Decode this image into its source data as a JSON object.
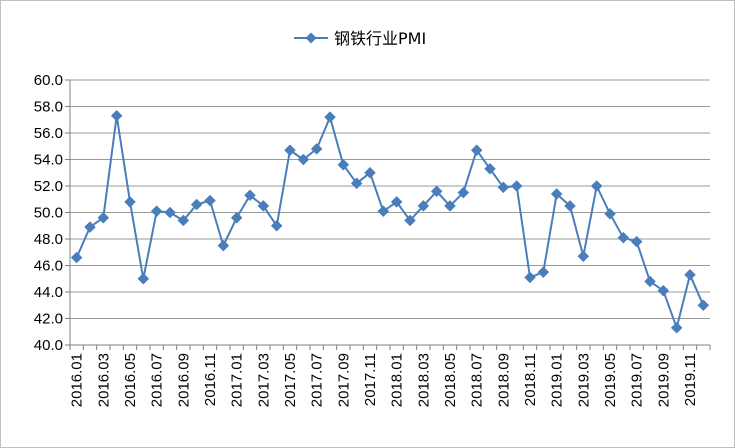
{
  "chart_data": {
    "type": "line",
    "x": [
      "2016.01",
      "2016.02",
      "2016.03",
      "2016.04",
      "2016.05",
      "2016.06",
      "2016.07",
      "2016.08",
      "2016.09",
      "2016.10",
      "2016.11",
      "2016.12",
      "2017.01",
      "2017.02",
      "2017.03",
      "2017.04",
      "2017.05",
      "2017.06",
      "2017.07",
      "2017.08",
      "2017.09",
      "2017.10",
      "2017.11",
      "2017.12",
      "2018.01",
      "2018.02",
      "2018.03",
      "2018.04",
      "2018.05",
      "2018.06",
      "2018.07",
      "2018.08",
      "2018.09",
      "2018.10",
      "2018.11",
      "2018.12",
      "2019.01",
      "2019.02",
      "2019.03",
      "2019.04",
      "2019.05",
      "2019.06",
      "2019.07",
      "2019.08",
      "2019.09",
      "2019.10",
      "2019.11",
      "2019.12"
    ],
    "x_tick_labels": [
      "2016.01",
      "2016.03",
      "2016.05",
      "2016.07",
      "2016.09",
      "2016.11",
      "2017.01",
      "2017.03",
      "2017.05",
      "2017.07",
      "2017.09",
      "2017.11",
      "2018.01",
      "2018.03",
      "2018.05",
      "2018.07",
      "2018.09",
      "2018.11",
      "2019.01",
      "2019.03",
      "2019.05",
      "2019.07",
      "2019.09",
      "2019.11"
    ],
    "series": [
      {
        "name": "钢铁行业PMI",
        "color": "#4a7ebb",
        "marker": "diamond",
        "values": [
          46.6,
          48.9,
          49.6,
          57.3,
          50.8,
          45.0,
          50.1,
          50.0,
          49.4,
          50.6,
          50.9,
          47.5,
          49.6,
          51.3,
          50.5,
          49.0,
          54.7,
          54.0,
          54.8,
          57.2,
          53.6,
          52.2,
          53.0,
          50.1,
          50.8,
          49.4,
          50.5,
          51.6,
          50.5,
          51.5,
          54.7,
          53.3,
          51.9,
          52.0,
          45.1,
          45.5,
          51.4,
          50.5,
          46.7,
          52.0,
          49.9,
          48.1,
          47.8,
          44.8,
          44.1,
          41.3,
          45.3,
          43.0
        ]
      }
    ],
    "y_tick_labels": [
      "40.0",
      "42.0",
      "44.0",
      "46.0",
      "48.0",
      "50.0",
      "52.0",
      "54.0",
      "56.0",
      "58.0",
      "60.0"
    ],
    "ylim": [
      40,
      60
    ],
    "y_step": 2,
    "grid": true,
    "legend_position": "top-center"
  }
}
